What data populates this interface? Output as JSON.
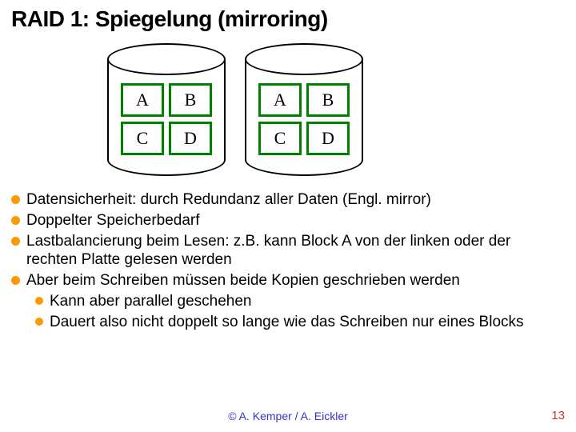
{
  "title": {
    "text": "RAID 1: Spiegelung (mirroring)",
    "fontsize": 28,
    "color": "#000000"
  },
  "disks": {
    "cell_border_color": "#008000",
    "cell_border_width": 3,
    "cell_fontsize": 22,
    "cell_text_color": "#000000",
    "left": {
      "cells": [
        "A",
        "B",
        "C",
        "D"
      ]
    },
    "right": {
      "cells": [
        "A",
        "B",
        "C",
        "D"
      ]
    }
  },
  "bullets": {
    "fontsize": 19,
    "text_color": "#000000",
    "bullet_color": "#ff9900",
    "bullet_diameter": 11,
    "sub_bullet_diameter": 10,
    "items": [
      {
        "text": "Datensicherheit: durch Redundanz aller Daten (Engl. mirror)"
      },
      {
        "text": "Doppelter Speicherbedarf"
      },
      {
        "text": "Lastbalancierung beim Lesen: z.B. kann Block A von der linken oder der rechten Platte gelesen werden"
      },
      {
        "text": "Aber beim Schreiben müssen beide Kopien geschrieben werden",
        "sub": [
          {
            "text": "Kann aber parallel geschehen"
          },
          {
            "text": "Dauert also nicht doppelt so lange wie das Schreiben nur eines Blocks"
          }
        ]
      }
    ]
  },
  "footer": {
    "copyright": "© A. Kemper / A. Eickler",
    "copyright_color": "#3333cc",
    "copyright_fontsize": 14,
    "page_number": "13",
    "page_number_color": "#cc3333",
    "page_number_fontsize": 15
  }
}
